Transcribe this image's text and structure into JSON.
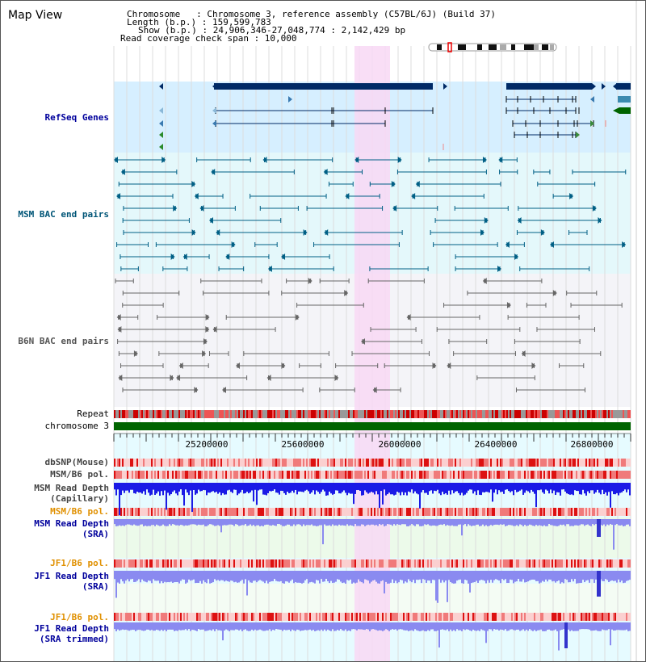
{
  "view_title": "Map View",
  "info": {
    "chromosome_line": "Chromosome   : Chromosome 3, reference assembly (C57BL/6J) (Build 37)",
    "length_line": "Length (b.p.) : 159,599,783",
    "show_line": "Show (b.p.) : 24,906,346-27,048,774 : 2,142,429 bp",
    "coverage_line": "Read coverage check span : 10,000"
  },
  "tracks": {
    "refseq": "RefSeq Genes",
    "msm_bac": "MSM BAC end pairs",
    "b6n_bac": "B6N BAC end pairs",
    "repeat": "Repeat",
    "chromosome": "chromosome 3",
    "dbsnp": "dbSNP(Mouse)",
    "msm_b6_pol_1": "MSM/B6 pol.",
    "msm_depth_cap_1": "MSM Read Depth",
    "msm_depth_cap_2": "(Capillary)",
    "msm_b6_pol_2": "MSM/B6 pol.",
    "msm_depth_sra_1": "MSM Read Depth",
    "msm_depth_sra_2": "(SRA)",
    "jf1_b6_pol_1": "JF1/B6 pol.",
    "jf1_depth_sra_1": "JF1 Read Depth",
    "jf1_depth_sra_2": "(SRA)",
    "jf1_b6_pol_2": "JF1/B6 pol.",
    "jf1_depth_trim_1": "JF1 Read Depth",
    "jf1_depth_trim_2": "(SRA trimmed)"
  },
  "axis_ticks": [
    "25200000",
    "25600000",
    "26000000",
    "26400000",
    "26800000"
  ],
  "colors": {
    "highlight": "#f8d8f4",
    "gene": "#002a66",
    "msm_bac": "#005f85",
    "b6n_bac": "#666666",
    "refseq_bg": "#d6efff",
    "msm_bac_bg": "#e4f8fb",
    "b6n_bac_bg": "#f4f4f8",
    "chromosome_bar": "#006400",
    "repeat": "#cc0000",
    "depth_blue": "#1a1ae6",
    "depth_light_blue": "#8a8af0",
    "label_blue": "#00009c",
    "label_orange": "#e09000",
    "label_teal": "#005577"
  }
}
